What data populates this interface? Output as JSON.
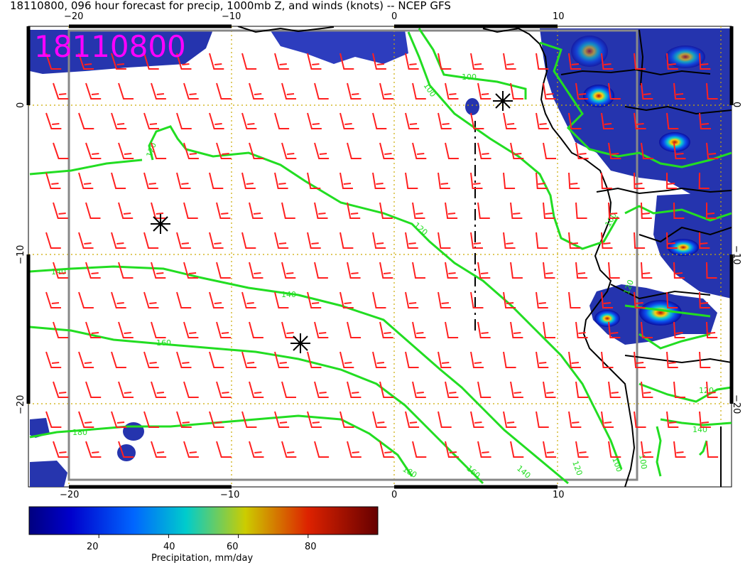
{
  "header": {
    "title": "18110800, 096 hour forecast for precip, 1000mb Z, and winds (knots) -- NCEP GFS",
    "stamp": "18110800",
    "stamp_color": "#ff00ff"
  },
  "axes": {
    "top_lon_ticks": [
      "−20",
      "−10",
      "0",
      "10"
    ],
    "bottom_lon_ticks": [
      "−20",
      "−10",
      "0",
      "10"
    ],
    "left_lat_ticks": [
      "0",
      "−10",
      "−20"
    ],
    "right_lat_ticks": [
      "0",
      "−10",
      "−20"
    ]
  },
  "contours": {
    "color": "#22dd22",
    "labels": [
      "100",
      "100",
      "100",
      "120",
      "120",
      "120",
      "140",
      "140",
      "140",
      "160",
      "160",
      "180",
      "180",
      "100",
      "140",
      "120",
      "100",
      "120"
    ]
  },
  "colorbar": {
    "title": "Precipitation, mm/day",
    "ticks": [
      "20",
      "40",
      "60",
      "80"
    ],
    "min": 0,
    "max": 100
  },
  "colors": {
    "wind_barb": "#ff2020",
    "coast": "#000000",
    "grid": "#ccaa00",
    "frame": "#888888"
  },
  "markers": [
    "storm-center",
    "storm-center",
    "storm-center"
  ]
}
